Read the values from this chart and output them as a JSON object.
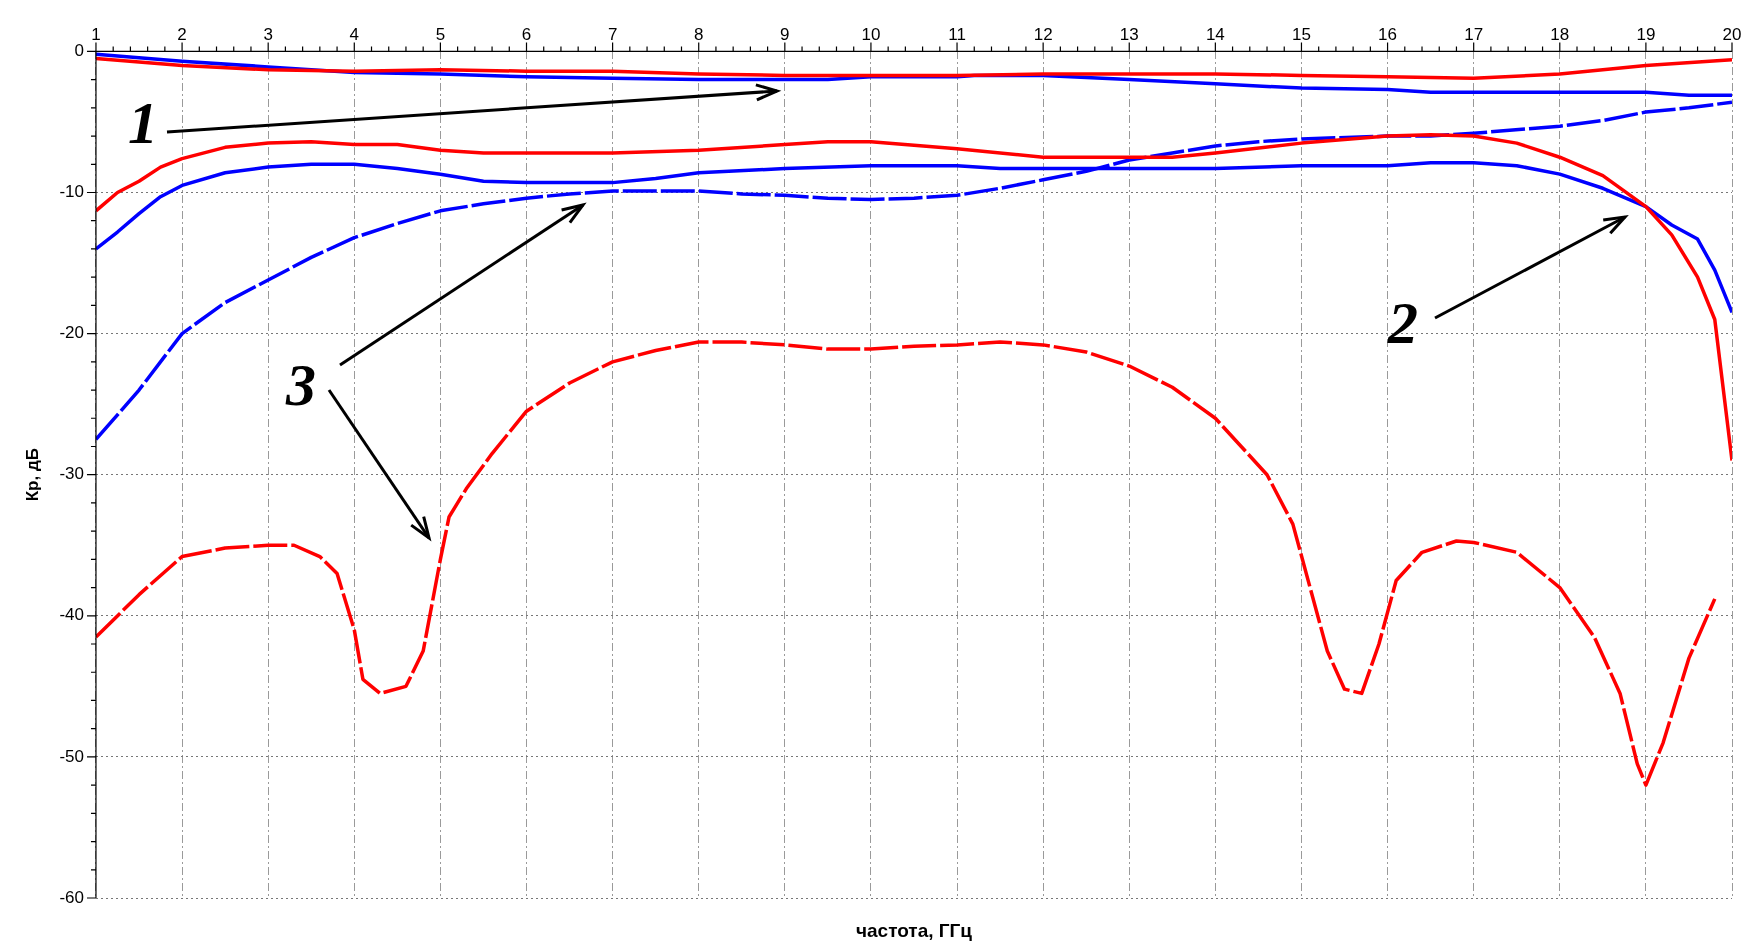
{
  "chart_data": {
    "type": "line",
    "xlabel": "частота, ГГц",
    "ylabel": "Кр, дБ",
    "xlim": [
      1,
      20
    ],
    "xticks": [
      1,
      2,
      3,
      4,
      5,
      6,
      7,
      8,
      9,
      10,
      11,
      12,
      13,
      14,
      15,
      16,
      17,
      18,
      19,
      20
    ],
    "ylim": [
      -60,
      0
    ],
    "yticks": [
      -60,
      -50,
      -40,
      -30,
      -20,
      -10,
      0
    ],
    "grid": true,
    "legend": false,
    "marker": "none",
    "line_style": "solid",
    "annotations": [
      "1",
      "2",
      "3"
    ],
    "series": [
      {
        "color": "#ff0000",
        "x": [
          1,
          2,
          3,
          4,
          5,
          6,
          7,
          8,
          9,
          10,
          11,
          12,
          13,
          14,
          15,
          16,
          17,
          18,
          19,
          20
        ],
        "values": [
          -0.5,
          -1.0,
          -1.3,
          -1.4,
          -1.3,
          -1.4,
          -1.4,
          -1.6,
          -1.7,
          -1.7,
          -1.7,
          -1.6,
          -1.6,
          -1.6,
          -1.7,
          -1.8,
          -1.9,
          -1.6,
          -1.0,
          -0.6
        ]
      },
      {
        "color": "#0000ff",
        "x": [
          1,
          2,
          3,
          4,
          5,
          6,
          7,
          8,
          9,
          9.5,
          10,
          11,
          11.2,
          12,
          13,
          14,
          15,
          16,
          16.5,
          17,
          18,
          19,
          19.5,
          20
        ],
        "values": [
          -0.2,
          -0.7,
          -1.1,
          -1.5,
          -1.6,
          -1.8,
          -1.9,
          -2.0,
          -2.0,
          -2.0,
          -1.8,
          -1.8,
          -1.7,
          -1.7,
          -2.0,
          -2.3,
          -2.6,
          -2.7,
          -2.9,
          -2.9,
          -2.9,
          -2.9,
          -3.1,
          -3.1
        ]
      },
      {
        "color": "#ff0000",
        "x": [
          1,
          1.25,
          1.5,
          1.75,
          2,
          2.5,
          3,
          3.5,
          4,
          4.5,
          5,
          5.5,
          6,
          7,
          8,
          9,
          9.5,
          10,
          11,
          12,
          13,
          13.5,
          14,
          15,
          16,
          16.5,
          17,
          17.5,
          18,
          18.5,
          19,
          19.3,
          19.6,
          19.8,
          20
        ],
        "values": [
          -11.3,
          -10.0,
          -9.2,
          -8.2,
          -7.6,
          -6.8,
          -6.5,
          -6.4,
          -6.6,
          -6.6,
          -7.0,
          -7.2,
          -7.2,
          -7.2,
          -7.0,
          -6.6,
          -6.4,
          -6.4,
          -6.9,
          -7.5,
          -7.5,
          -7.5,
          -7.2,
          -6.5,
          -6.0,
          -5.9,
          -6.0,
          -6.5,
          -7.5,
          -8.8,
          -11.0,
          -13.0,
          -16.0,
          -19.0,
          -29.0
        ]
      },
      {
        "color": "#0000ff",
        "x": [
          1,
          1.25,
          1.5,
          1.75,
          2,
          2.5,
          3,
          3.5,
          4,
          4.5,
          5,
          5.5,
          6,
          7,
          7.5,
          8,
          9,
          10,
          11,
          11.5,
          12,
          13,
          14,
          15,
          16,
          16.5,
          17,
          17.5,
          18,
          18.5,
          19,
          19.3,
          19.6,
          19.8,
          20
        ],
        "values": [
          -14.0,
          -12.8,
          -11.5,
          -10.3,
          -9.5,
          -8.6,
          -8.2,
          -8.0,
          -8.0,
          -8.3,
          -8.7,
          -9.2,
          -9.3,
          -9.3,
          -9.0,
          -8.6,
          -8.3,
          -8.1,
          -8.1,
          -8.3,
          -8.3,
          -8.3,
          -8.3,
          -8.1,
          -8.1,
          -7.9,
          -7.9,
          -8.1,
          -8.7,
          -9.7,
          -11.0,
          -12.3,
          -13.3,
          -15.5,
          -18.5
        ]
      },
      {
        "color": "#0000ff",
        "line_style": "dashed",
        "x": [
          1,
          1.5,
          2,
          2.5,
          3,
          3.5,
          4,
          4.5,
          5,
          5.5,
          6,
          6.5,
          7,
          8,
          8.5,
          9,
          9.5,
          10,
          10.5,
          11,
          11.5,
          12,
          12.5,
          13,
          13.5,
          14,
          14.5,
          15,
          16,
          16.5,
          17,
          18,
          18.5,
          19,
          19.5,
          20
        ],
        "values": [
          -27.5,
          -24.0,
          -20.0,
          -17.8,
          -16.2,
          -14.6,
          -13.2,
          -12.2,
          -11.3,
          -10.8,
          -10.4,
          -10.1,
          -9.9,
          -9.9,
          -10.1,
          -10.2,
          -10.4,
          -10.5,
          -10.4,
          -10.2,
          -9.7,
          -9.1,
          -8.5,
          -7.7,
          -7.2,
          -6.7,
          -6.4,
          -6.2,
          -6.0,
          -6.0,
          -5.8,
          -5.3,
          -4.9,
          -4.3,
          -4.0,
          -3.6
        ]
      },
      {
        "color": "#ff0000",
        "line_style": "dashed",
        "x": [
          1,
          1.5,
          2,
          2.5,
          3,
          3.3,
          3.6,
          3.8,
          4,
          4.1,
          4.3,
          4.6,
          4.8,
          5,
          5.1,
          5.3,
          5.6,
          6,
          6.5,
          7,
          7.5,
          8,
          8.5,
          9,
          9.5,
          10,
          10.5,
          11,
          11.5,
          12,
          12.5,
          13,
          13.5,
          14,
          14.3,
          14.6,
          14.9,
          15.1,
          15.3,
          15.5,
          15.7,
          15.9,
          16.1,
          16.4,
          16.8,
          17,
          17.5,
          18,
          18.4,
          18.7,
          18.9,
          19,
          19.2,
          19.5,
          19.8
        ],
        "values": [
          -41.5,
          -38.5,
          -35.8,
          -35.2,
          -35.0,
          -35.0,
          -35.8,
          -37.0,
          -41.0,
          -44.5,
          -45.5,
          -45.0,
          -42.5,
          -36.0,
          -33.0,
          -31.0,
          -28.5,
          -25.5,
          -23.5,
          -22.0,
          -21.2,
          -20.6,
          -20.6,
          -20.8,
          -21.1,
          -21.1,
          -20.9,
          -20.8,
          -20.6,
          -20.8,
          -21.3,
          -22.3,
          -23.8,
          -26.0,
          -28.0,
          -30.0,
          -33.5,
          -38.0,
          -42.5,
          -45.2,
          -45.5,
          -42.0,
          -37.5,
          -35.5,
          -34.7,
          -34.8,
          -35.5,
          -38.0,
          -41.5,
          -45.5,
          -50.5,
          -52.0,
          -49.0,
          -43.0,
          -38.8
        ]
      }
    ]
  }
}
